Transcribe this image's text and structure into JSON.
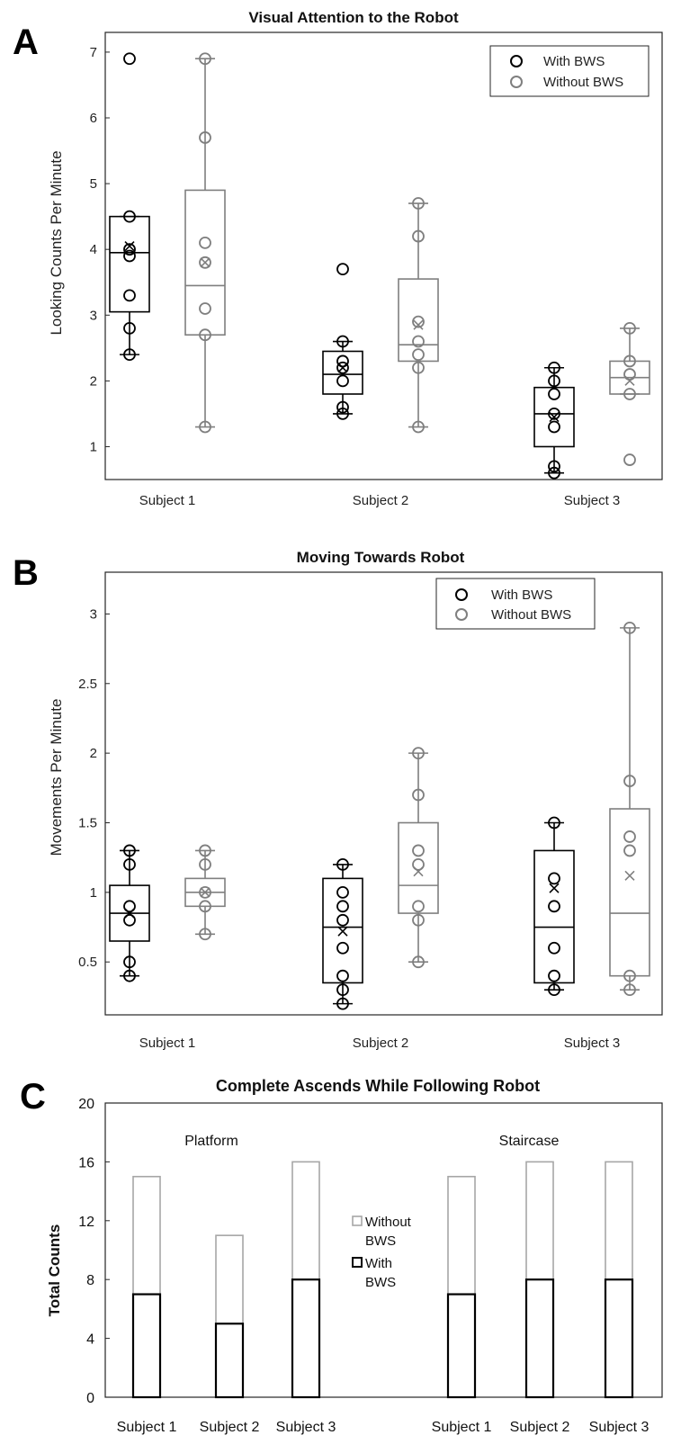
{
  "chart_data": [
    {
      "panel": "A",
      "type": "box",
      "title": "Visual Attention to the Robot",
      "ylabel": "Looking Counts Per Minute",
      "ylim": [
        0.5,
        7.3
      ],
      "yticks": [
        1,
        2,
        3,
        4,
        5,
        6,
        7
      ],
      "categories": [
        "Subject 1",
        "Subject 2",
        "Subject 3"
      ],
      "legend": {
        "placement": "top-right",
        "entries": [
          "With BWS",
          "Without BWS"
        ]
      },
      "series": [
        {
          "name": "With BWS",
          "color": "#000000",
          "boxes": [
            {
              "min": 2.4,
              "q1": 3.05,
              "median": 3.95,
              "q3": 4.5,
              "max": 4.5,
              "mean": 4.05,
              "points": [
                6.9,
                4.5,
                4.0,
                3.9,
                3.3,
                2.8,
                2.4
              ]
            },
            {
              "min": 1.5,
              "q1": 1.8,
              "median": 2.1,
              "q3": 2.45,
              "max": 2.6,
              "mean": 2.2,
              "points": [
                3.7,
                2.6,
                2.3,
                2.2,
                2.0,
                1.6,
                1.5
              ]
            },
            {
              "min": 0.6,
              "q1": 1.0,
              "median": 1.5,
              "q3": 1.9,
              "max": 2.2,
              "mean": 1.45,
              "points": [
                2.2,
                2.0,
                1.8,
                1.5,
                1.3,
                0.7,
                0.6
              ]
            }
          ]
        },
        {
          "name": "Without BWS",
          "color": "#7f7f7f",
          "boxes": [
            {
              "min": 1.3,
              "q1": 2.7,
              "median": 3.45,
              "q3": 4.9,
              "max": 6.9,
              "mean": 3.8,
              "points": [
                6.9,
                5.7,
                4.1,
                3.8,
                3.1,
                2.7,
                1.3
              ]
            },
            {
              "min": 1.3,
              "q1": 2.3,
              "median": 2.55,
              "q3": 3.55,
              "max": 4.7,
              "mean": 2.85,
              "points": [
                4.7,
                4.2,
                2.9,
                2.6,
                2.4,
                2.2,
                1.3
              ]
            },
            {
              "min": 1.8,
              "q1": 1.8,
              "median": 2.05,
              "q3": 2.3,
              "max": 2.8,
              "mean": 2.0,
              "points": [
                2.8,
                2.3,
                2.1,
                1.8,
                0.8
              ]
            }
          ]
        }
      ]
    },
    {
      "panel": "B",
      "type": "box",
      "title": "Moving Towards Robot",
      "ylabel": "Movements Per Minute",
      "ylim": [
        0.12,
        3.3
      ],
      "yticks": [
        0.5,
        1,
        1.5,
        2,
        2.5,
        3
      ],
      "categories": [
        "Subject 1",
        "Subject 2",
        "Subject 3"
      ],
      "legend": {
        "placement": "top-right",
        "entries": [
          "With BWS",
          "Without BWS"
        ]
      },
      "series": [
        {
          "name": "With BWS",
          "color": "#000000",
          "boxes": [
            {
              "min": 0.4,
              "q1": 0.65,
              "median": 0.85,
              "q3": 1.05,
              "max": 1.3,
              "mean": 0.85,
              "points": [
                1.3,
                1.2,
                0.9,
                0.8,
                0.5,
                0.4
              ]
            },
            {
              "min": 0.2,
              "q1": 0.35,
              "median": 0.75,
              "q3": 1.1,
              "max": 1.2,
              "mean": 0.72,
              "points": [
                1.2,
                1.0,
                0.9,
                0.8,
                0.6,
                0.4,
                0.3,
                0.2
              ]
            },
            {
              "min": 0.3,
              "q1": 0.35,
              "median": 0.75,
              "q3": 1.3,
              "max": 1.5,
              "mean": 1.03,
              "points": [
                1.5,
                1.1,
                0.9,
                0.6,
                0.4,
                0.3
              ]
            }
          ]
        },
        {
          "name": "Without BWS",
          "color": "#7f7f7f",
          "boxes": [
            {
              "min": 0.7,
              "q1": 0.9,
              "median": 1.0,
              "q3": 1.1,
              "max": 1.3,
              "mean": 1.0,
              "points": [
                1.3,
                1.2,
                1.0,
                0.9,
                0.7
              ]
            },
            {
              "min": 0.5,
              "q1": 0.85,
              "median": 1.05,
              "q3": 1.5,
              "max": 2.0,
              "mean": 1.15,
              "points": [
                2.0,
                1.7,
                1.3,
                1.2,
                0.9,
                0.8,
                0.5
              ]
            },
            {
              "min": 0.3,
              "q1": 0.4,
              "median": 0.85,
              "q3": 1.6,
              "max": 2.9,
              "mean": 1.12,
              "points": [
                2.9,
                1.8,
                1.4,
                1.3,
                0.4,
                0.3
              ]
            }
          ]
        }
      ]
    },
    {
      "panel": "C",
      "type": "bar",
      "stacked": true,
      "title": "Complete Ascends While Following Robot",
      "ylabel": "Total Counts",
      "ylim": [
        0,
        20
      ],
      "yticks": [
        0,
        4,
        8,
        12,
        16,
        20
      ],
      "groups": [
        "Platform",
        "Staircase"
      ],
      "categories": [
        "Subject 1",
        "Subject 2",
        "Subject 3",
        "Subject 1",
        "Subject 2",
        "Subject 3"
      ],
      "legend": {
        "placement": "center",
        "entries": [
          "Without BWS",
          "With BWS"
        ]
      },
      "series": [
        {
          "name": "With BWS",
          "color": "#000000",
          "values": [
            7,
            5,
            8,
            7,
            8,
            8
          ]
        },
        {
          "name": "Without BWS",
          "color": "#a6a6a6",
          "values": [
            8,
            6,
            8,
            8,
            8,
            8
          ]
        }
      ]
    }
  ]
}
